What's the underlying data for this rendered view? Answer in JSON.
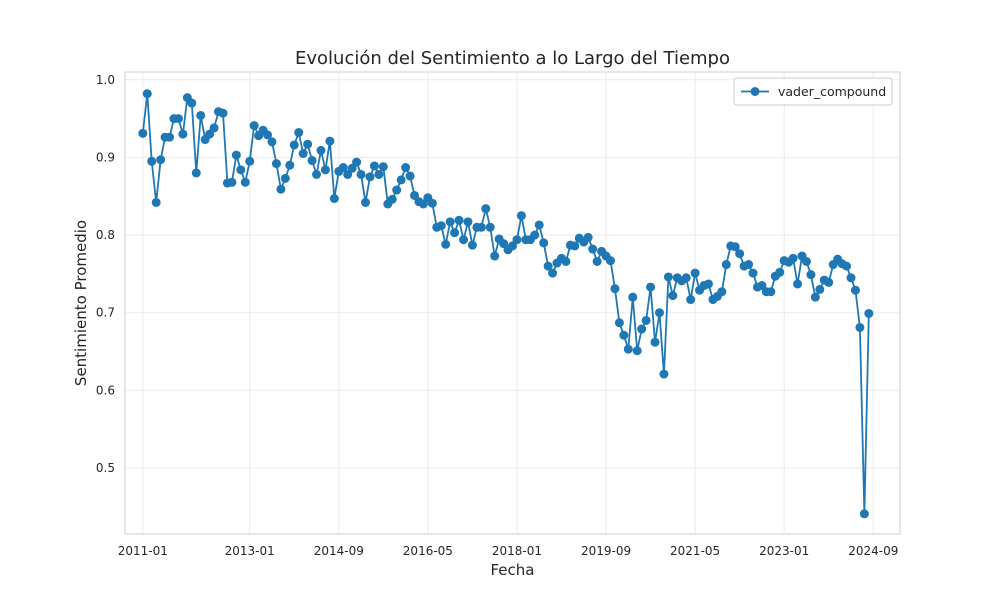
{
  "chart_data": {
    "type": "line",
    "title": "Evolución del Sentimiento a lo Largo del Tiempo",
    "xlabel": "Fecha",
    "ylabel": "Sentimiento Promedio",
    "x_ticks": [
      "2011-01",
      "2013-01",
      "2014-09",
      "2016-05",
      "2018-01",
      "2019-09",
      "2021-05",
      "2023-01",
      "2024-09"
    ],
    "y_ticks": [
      "0.5",
      "0.6",
      "0.7",
      "0.8",
      "0.9",
      "1.0"
    ],
    "xlim": [
      "2010-09",
      "2025-03"
    ],
    "ylim": [
      0.415,
      1.01
    ],
    "grid": true,
    "legend_position": "upper right",
    "colors": {
      "series": "#1f77b4",
      "grid": "#ebebeb",
      "frame": "#cccccc"
    },
    "series": [
      {
        "name": "vader_compound",
        "x_start": "2011-01",
        "x_step": "1 month",
        "values": [
          0.931,
          0.982,
          0.895,
          0.842,
          0.897,
          0.926,
          0.926,
          0.95,
          0.95,
          0.93,
          0.977,
          0.97,
          0.88,
          0.954,
          0.923,
          0.93,
          0.938,
          0.959,
          0.957,
          0.867,
          0.868,
          0.903,
          0.884,
          0.868,
          0.895,
          0.941,
          0.928,
          0.935,
          0.929,
          0.92,
          0.892,
          0.859,
          0.873,
          0.89,
          0.916,
          0.932,
          0.905,
          0.917,
          0.896,
          0.878,
          0.909,
          0.884,
          0.921,
          0.847,
          0.882,
          0.887,
          0.878,
          0.886,
          0.894,
          0.878,
          0.842,
          0.875,
          0.889,
          0.878,
          0.888,
          0.84,
          0.846,
          0.858,
          0.871,
          0.887,
          0.876,
          0.851,
          0.843,
          0.84,
          0.848,
          0.841,
          0.81,
          0.812,
          0.788,
          0.817,
          0.803,
          0.819,
          0.794,
          0.817,
          0.787,
          0.81,
          0.81,
          0.834,
          0.81,
          0.773,
          0.795,
          0.789,
          0.781,
          0.786,
          0.794,
          0.825,
          0.794,
          0.794,
          0.8,
          0.813,
          0.79,
          0.76,
          0.751,
          0.764,
          0.77,
          0.766,
          0.787,
          0.786,
          0.796,
          0.791,
          0.797,
          0.782,
          0.766,
          0.779,
          0.773,
          0.767,
          0.731,
          0.687,
          0.671,
          0.653,
          0.72,
          0.651,
          0.679,
          0.69,
          0.733,
          0.662,
          0.7,
          0.621,
          0.746,
          0.722,
          0.745,
          0.741,
          0.745,
          0.717,
          0.751,
          0.729,
          0.735,
          0.737,
          0.717,
          0.721,
          0.727,
          0.762,
          0.786,
          0.785,
          0.776,
          0.76,
          0.762,
          0.751,
          0.733,
          0.735,
          0.727,
          0.727,
          0.747,
          0.752,
          0.767,
          0.765,
          0.77,
          0.737,
          0.773,
          0.766,
          0.749,
          0.72,
          0.73,
          0.742,
          0.739,
          0.762,
          0.769,
          0.763,
          0.76,
          0.745,
          0.729,
          0.681,
          0.441,
          0.699
        ]
      }
    ]
  }
}
